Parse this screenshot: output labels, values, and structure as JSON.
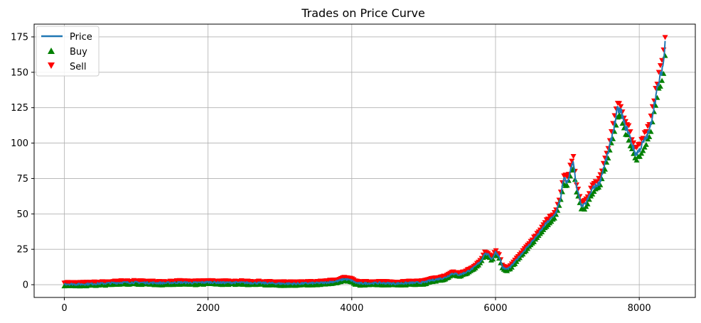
{
  "chart_data": {
    "type": "line",
    "title": "Trades on Price Curve",
    "xlabel": "",
    "ylabel": "",
    "xlim": [
      -420,
      8780
    ],
    "ylim": [
      -9,
      184
    ],
    "x_ticks": [
      0,
      2000,
      4000,
      6000,
      8000
    ],
    "y_ticks": [
      0,
      25,
      50,
      75,
      100,
      125,
      150,
      175
    ],
    "grid": true,
    "legend_position": "upper-left",
    "legend": [
      {
        "name": "Price",
        "kind": "line",
        "color": "#1f77b4"
      },
      {
        "name": "Buy",
        "kind": "marker-triangle-up",
        "color": "#008000"
      },
      {
        "name": "Sell",
        "kind": "marker-triangle-down",
        "color": "#ff0000"
      }
    ],
    "series": [
      {
        "name": "Price",
        "color": "#1f77b4",
        "x": [
          0,
          200,
          400,
          600,
          800,
          1000,
          1200,
          1400,
          1600,
          1800,
          2000,
          2200,
          2400,
          2600,
          2800,
          3000,
          3200,
          3400,
          3600,
          3800,
          3900,
          3950,
          4000,
          4050,
          4100,
          4200,
          4400,
          4600,
          4800,
          5000,
          5100,
          5200,
          5300,
          5400,
          5500,
          5600,
          5700,
          5800,
          5850,
          5900,
          5950,
          6000,
          6050,
          6100,
          6150,
          6200,
          6300,
          6400,
          6500,
          6600,
          6700,
          6800,
          6850,
          6900,
          6950,
          7000,
          7050,
          7080,
          7120,
          7200,
          7250,
          7300,
          7350,
          7400,
          7450,
          7500,
          7550,
          7600,
          7650,
          7700,
          7750,
          7800,
          7850,
          7900,
          7950,
          8000,
          8050,
          8100,
          8150,
          8200,
          8250,
          8300,
          8340,
          8360
        ],
        "y": [
          0.5,
          0.3,
          0.6,
          1,
          1.5,
          1.6,
          1.3,
          1.2,
          1.6,
          1.3,
          1.8,
          1.4,
          1.5,
          1.3,
          1.1,
          0.8,
          0.7,
          1,
          1.3,
          2.5,
          4,
          3.5,
          3,
          1.5,
          0.9,
          1,
          1.2,
          0.8,
          1.2,
          1.6,
          3,
          4,
          5,
          8,
          7,
          9,
          12,
          17,
          22,
          21,
          18,
          23,
          20,
          12,
          11,
          12,
          18,
          24,
          30,
          36,
          43,
          48,
          52,
          60,
          75,
          72,
          82,
          88,
          70,
          55,
          57,
          62,
          68,
          70,
          72,
          82,
          90,
          100,
          112,
          124,
          122,
          112,
          108,
          99,
          92,
          95,
          100,
          104,
          110,
          125,
          138,
          148,
          158,
          170
        ]
      },
      {
        "name": "Buy",
        "color": "#008000",
        "marker": "triangle-up"
      },
      {
        "name": "Sell",
        "color": "#ff0000",
        "marker": "triangle-down"
      }
    ]
  }
}
